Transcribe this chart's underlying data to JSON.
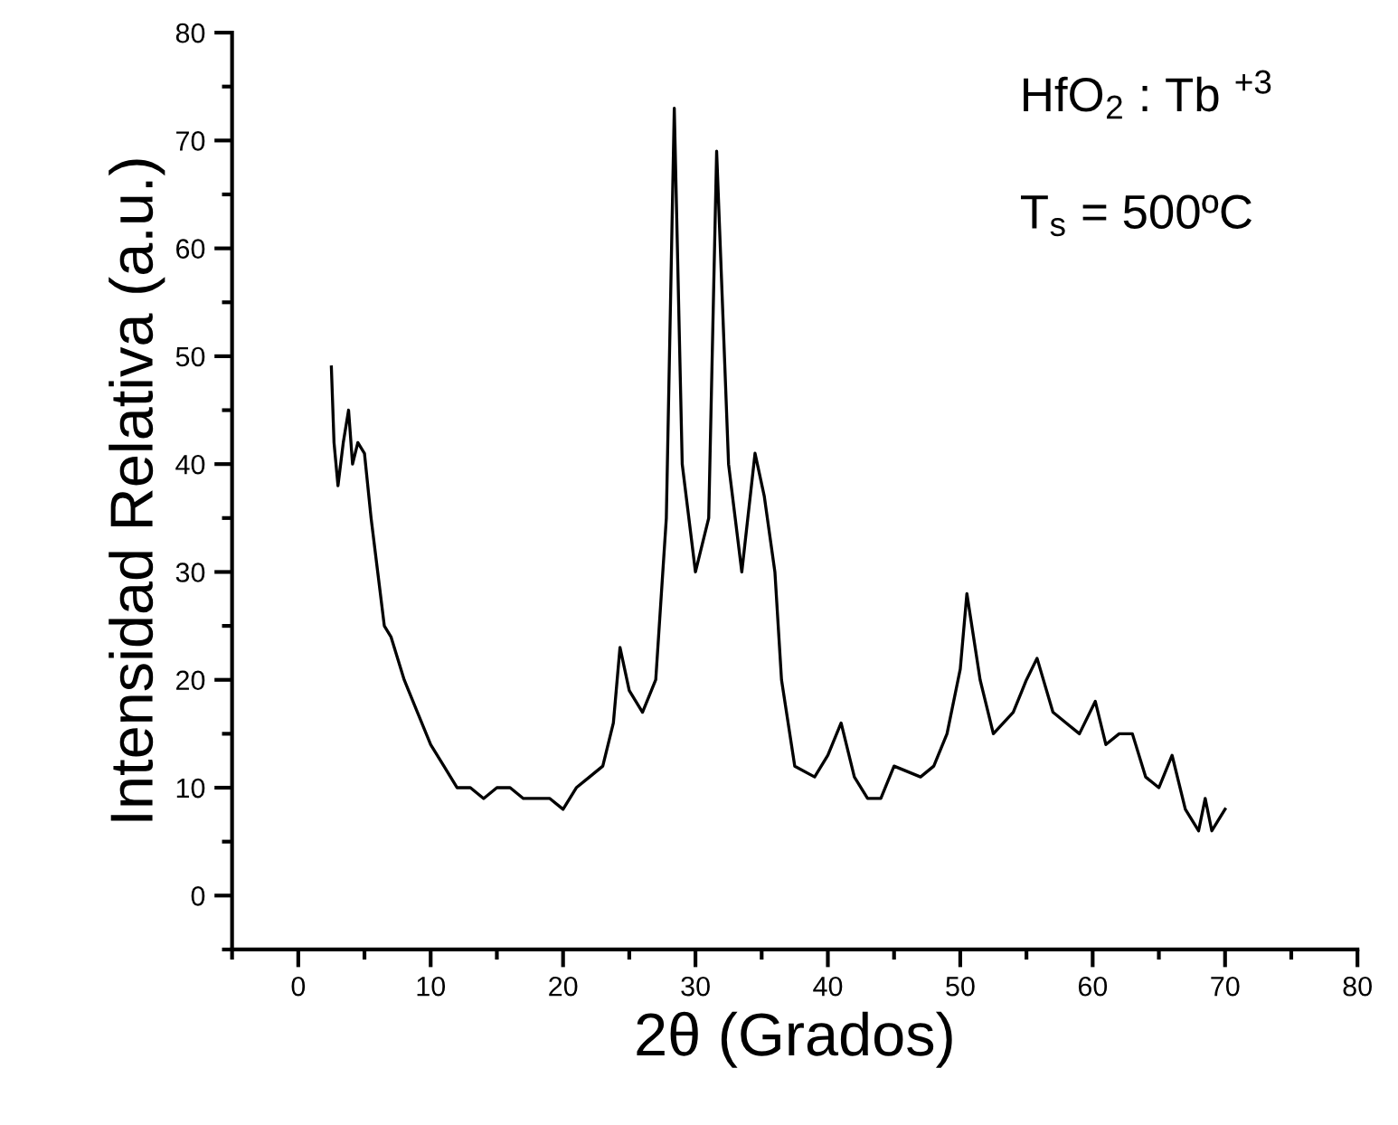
{
  "chart_data": {
    "type": "line",
    "xlabel": "2θ (Grados)",
    "ylabel": "Intensidad Relativa (a.u.)",
    "annotations": [
      "HfO$_{2}$ : Tb $^{+3}$",
      "T$_{s}$ = 500ºC"
    ],
    "xlim": [
      -5,
      80
    ],
    "ylim": [
      -5,
      80
    ],
    "xticks": [
      0,
      10,
      20,
      30,
      40,
      50,
      60,
      70,
      80
    ],
    "yticks": [
      0,
      10,
      20,
      30,
      40,
      50,
      60,
      70,
      80
    ],
    "marker": "none",
    "line_style": "solid",
    "series": [
      {
        "color": "#000000",
        "x": [
          2.5,
          2.7,
          3.0,
          3.4,
          3.8,
          4.1,
          4.5,
          5.0,
          5.5,
          6.0,
          6.5,
          7.0,
          8.0,
          9.0,
          10.0,
          11.0,
          12.0,
          13.0,
          14.0,
          15.0,
          16.0,
          17.0,
          18.0,
          19.0,
          20.0,
          21.0,
          22.0,
          23.0,
          23.8,
          24.3,
          25.0,
          26.0,
          27.0,
          27.8,
          28.4,
          29.0,
          30.0,
          31.0,
          31.6,
          32.5,
          33.0,
          33.5,
          34.5,
          35.2,
          36.0,
          36.5,
          37.5,
          39.0,
          40.0,
          41.0,
          42.0,
          43.0,
          44.0,
          45.0,
          47.0,
          48.0,
          49.0,
          50.0,
          50.5,
          51.5,
          52.5,
          54.0,
          55.0,
          55.8,
          57.0,
          58.0,
          59.0,
          60.2,
          61.0,
          62.0,
          63.0,
          64.0,
          65.0,
          66.0,
          67.0,
          68.0,
          68.5,
          69.0,
          70.0
        ],
        "values": [
          49,
          42,
          38,
          42,
          45,
          40,
          42,
          41,
          35,
          30,
          25,
          24,
          20,
          17,
          14,
          12,
          10,
          10,
          9,
          10,
          10,
          9,
          9,
          9,
          8,
          10,
          11,
          12,
          16,
          23,
          19,
          17,
          20,
          35,
          73,
          40,
          30,
          35,
          69,
          40,
          35,
          30,
          41,
          37,
          30,
          20,
          12,
          11,
          13,
          16,
          11,
          9,
          9,
          12,
          11,
          12,
          15,
          21,
          28,
          20,
          15,
          17,
          20,
          22,
          17,
          16,
          15,
          18,
          14,
          15,
          15,
          11,
          10,
          13,
          8,
          6,
          9,
          6,
          8
        ]
      }
    ]
  }
}
